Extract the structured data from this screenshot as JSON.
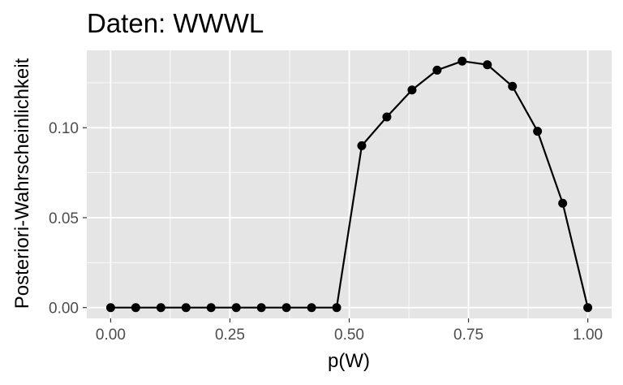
{
  "chart_data": {
    "type": "line",
    "title": "Daten: WWWL",
    "xlabel": "p(W)",
    "ylabel": "Posteriori-Wahrscheinlichkeit",
    "xlim": [
      -0.05,
      1.05
    ],
    "ylim": [
      -0.006,
      0.143
    ],
    "x_ticks": [
      0.0,
      0.25,
      0.5,
      0.75,
      1.0
    ],
    "x_tick_labels": [
      "0.00",
      "0.25",
      "0.50",
      "0.75",
      "1.00"
    ],
    "y_ticks": [
      0.0,
      0.05,
      0.1
    ],
    "y_tick_labels": [
      "0.00",
      "0.05",
      "0.10"
    ],
    "grid": true,
    "colors": {
      "panel": "#e5e5e5",
      "grid_major": "#ffffff",
      "series": "#000000"
    },
    "series": [
      {
        "x": [
          0.0,
          0.0526,
          0.1053,
          0.1579,
          0.2105,
          0.2632,
          0.3158,
          0.3684,
          0.4211,
          0.4737,
          0.5263,
          0.5789,
          0.6316,
          0.6842,
          0.7368,
          0.7895,
          0.8421,
          0.8947,
          0.9474,
          1.0
        ],
        "values": [
          0.0,
          0.0,
          0.0,
          0.0,
          0.0,
          0.0,
          0.0,
          0.0,
          0.0,
          0.0,
          0.09,
          0.106,
          0.121,
          0.132,
          0.137,
          0.135,
          0.123,
          0.098,
          0.058,
          0.0
        ]
      }
    ]
  }
}
